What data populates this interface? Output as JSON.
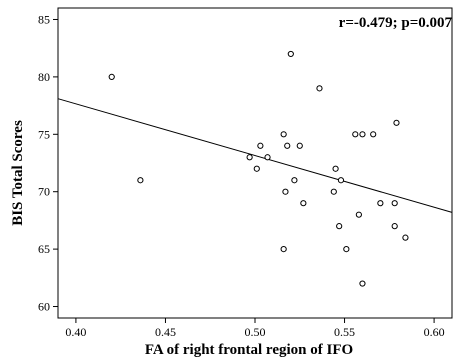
{
  "chart_data": {
    "type": "scatter",
    "xlabel": "FA of right frontal region of IFO",
    "ylabel": "BIS Total Scores",
    "annotation": "r=-0.479; p=0.007",
    "xlim": [
      0.39,
      0.61
    ],
    "ylim": [
      59,
      86
    ],
    "xticks": [
      "0.40",
      "0.45",
      "0.50",
      "0.55",
      "0.60"
    ],
    "yticks": [
      "60",
      "65",
      "70",
      "75",
      "80",
      "85"
    ],
    "grid": false,
    "points": [
      {
        "x": 0.42,
        "y": 80
      },
      {
        "x": 0.436,
        "y": 71
      },
      {
        "x": 0.497,
        "y": 73
      },
      {
        "x": 0.501,
        "y": 72
      },
      {
        "x": 0.503,
        "y": 74
      },
      {
        "x": 0.507,
        "y": 73
      },
      {
        "x": 0.516,
        "y": 75
      },
      {
        "x": 0.516,
        "y": 65
      },
      {
        "x": 0.517,
        "y": 70
      },
      {
        "x": 0.518,
        "y": 74
      },
      {
        "x": 0.52,
        "y": 82
      },
      {
        "x": 0.522,
        "y": 71
      },
      {
        "x": 0.525,
        "y": 74
      },
      {
        "x": 0.527,
        "y": 69
      },
      {
        "x": 0.536,
        "y": 79
      },
      {
        "x": 0.544,
        "y": 70
      },
      {
        "x": 0.545,
        "y": 72
      },
      {
        "x": 0.547,
        "y": 67
      },
      {
        "x": 0.548,
        "y": 71
      },
      {
        "x": 0.551,
        "y": 65
      },
      {
        "x": 0.556,
        "y": 75
      },
      {
        "x": 0.558,
        "y": 68
      },
      {
        "x": 0.56,
        "y": 75
      },
      {
        "x": 0.56,
        "y": 62
      },
      {
        "x": 0.566,
        "y": 75
      },
      {
        "x": 0.57,
        "y": 69
      },
      {
        "x": 0.578,
        "y": 69
      },
      {
        "x": 0.578,
        "y": 67
      },
      {
        "x": 0.579,
        "y": 76
      },
      {
        "x": 0.584,
        "y": 66
      }
    ],
    "fit_line": {
      "x": [
        0.39,
        0.61
      ],
      "y": [
        78.1,
        68.2
      ]
    },
    "colors": {
      "marker": "#000000",
      "line": "#000000",
      "frame": "#000000"
    }
  }
}
